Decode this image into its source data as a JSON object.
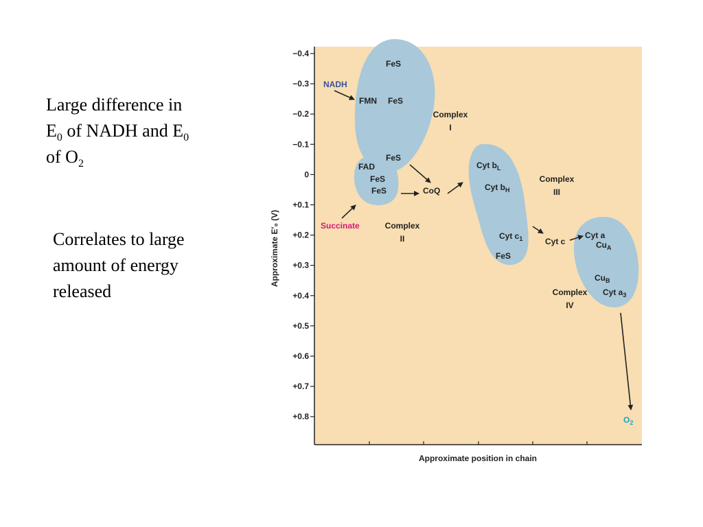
{
  "text": {
    "line1": "Large difference in",
    "line2_a": "E",
    "line2_sub1": "0",
    "line2_b": " of NADH and E",
    "line2_sub2": "0",
    "line3_a": "of O",
    "line3_sub": "2",
    "c1": "Correlates to large",
    "c2": "amount of energy",
    "c3": "released"
  },
  "diagram": {
    "y_axis_title": "Approximate E′₀ (V)",
    "x_axis_title": "Approximate position in chain",
    "y_ticks": [
      "−0.4",
      "−0.3",
      "−0.2",
      "−0.1",
      "0",
      "+0.1",
      "+0.2",
      "+0.3",
      "+0.4",
      "+0.5",
      "+0.6",
      "+0.7",
      "+0.8"
    ],
    "labels": {
      "nadh": "NADH",
      "fmn": "FMN",
      "fes_1": "FeS",
      "fes_2": "FeS",
      "fes_3": "FeS",
      "complex1": "Complex",
      "complex1_num": "I",
      "fad": "FAD",
      "fes_4": "FeS",
      "fes_5": "FeS",
      "coq": "CoQ",
      "succinate": "Succinate",
      "complex2": "Complex",
      "complex2_num": "II",
      "cytb": "Cyt b",
      "cytb_sub": "L",
      "cytbh": "Cyt b",
      "cytbh_sub": "H",
      "complex3": "Complex",
      "complex3_num": "III",
      "cytc1": "Cyt c",
      "cytc1_sub": "1",
      "fes_6": "FeS",
      "cytc": "Cyt c",
      "cyta": "Cyt a",
      "cua": "Cu",
      "cua_sub": "A",
      "cub": "Cu",
      "cub_sub": "B",
      "complex4": "Complex",
      "complex4_num": "IV",
      "cyta3": "Cyt a",
      "cyta3_sub": "3",
      "o2": "O",
      "o2_sub": "2"
    },
    "colors": {
      "background": "#f8deb2",
      "complex_fill": "#a9c8da",
      "nadh": "#3a4f9a",
      "succinate": "#d6177a",
      "o2": "#1aa5c8",
      "text": "#222222"
    }
  }
}
